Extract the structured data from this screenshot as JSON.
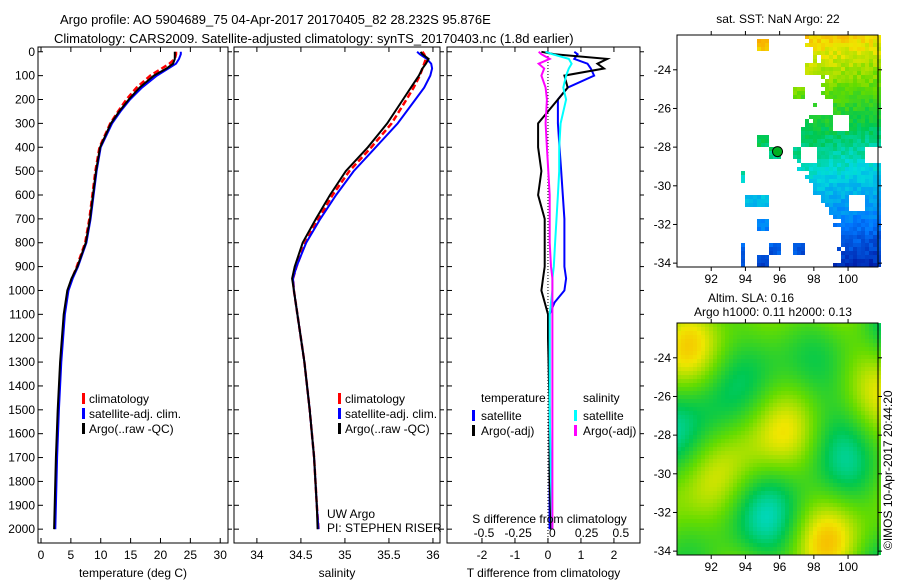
{
  "title_line1": "Argo profile: AO 5904689_75 04-Apr-2017 20170405_82 28.232S 95.876E",
  "title_line2": "Climatology: CARS2009. Satellite-adjusted climatology: synTS_20170403.nc (1.8d earlier)",
  "credit": "©IMOS 10-Apr-2017 20:44:20",
  "colors": {
    "climatology": "#ff0000",
    "satellite": "#0000ff",
    "argo": "#000000",
    "sal_satellite": "#00ffff",
    "sal_argo": "#ff00ff"
  },
  "chart_data": [
    {
      "id": "temperature",
      "type": "line",
      "xlabel": "temperature (deg C)",
      "xlim": [
        -0.5,
        31.3
      ],
      "ylim": [
        2058,
        -20
      ],
      "xticks": [
        0,
        5,
        10,
        15,
        20,
        25,
        30
      ],
      "xtick_labels": [
        "0",
        "5",
        "10",
        "15",
        "20",
        "25",
        "30"
      ],
      "yticks": [
        0,
        100,
        200,
        300,
        400,
        500,
        600,
        700,
        800,
        900,
        1000,
        1100,
        1200,
        1300,
        1400,
        1500,
        1600,
        1700,
        1800,
        1900,
        2000
      ],
      "ytick_labels": [
        "0",
        "100",
        "200",
        "300",
        "400",
        "500",
        "600",
        "700",
        "800",
        "900",
        "1000",
        "1100",
        "1200",
        "1300",
        "1400",
        "1500",
        "1600",
        "1700",
        "1800",
        "1900",
        "2000"
      ],
      "legend": [
        "climatology",
        "satellite-adj. clim.",
        "Argo(..raw -QC)"
      ],
      "depth": [
        0,
        10,
        30,
        50,
        70,
        100,
        150,
        200,
        250,
        300,
        400,
        500,
        600,
        700,
        800,
        900,
        950,
        1000,
        1100,
        1200,
        1300,
        1500,
        1700,
        1900,
        2000
      ],
      "series": [
        {
          "name": "climatology",
          "values": [
            22.6,
            22.6,
            22.4,
            21.5,
            20.2,
            18.3,
            16.0,
            14.3,
            12.9,
            11.6,
            9.8,
            9.1,
            8.6,
            8.1,
            7.4,
            6.0,
            5.2,
            4.5,
            3.9,
            3.6,
            3.3,
            2.9,
            2.6,
            2.4,
            2.3
          ]
        },
        {
          "name": "satellite-adj. clim.",
          "values": [
            23.4,
            23.4,
            23.1,
            22.6,
            21.3,
            19.4,
            16.9,
            14.9,
            13.3,
            11.9,
            10.0,
            9.3,
            8.8,
            8.3,
            7.6,
            6.2,
            5.3,
            4.6,
            4.0,
            3.7,
            3.4,
            3.0,
            2.7,
            2.5,
            2.4
          ]
        },
        {
          "name": "Argo(..raw -QC)",
          "values": [
            22.4,
            22.4,
            22.4,
            22.1,
            21.0,
            18.9,
            16.5,
            14.7,
            13.1,
            11.7,
            9.9,
            9.2,
            8.7,
            8.2,
            7.5,
            6.1,
            5.1,
            4.4,
            3.8,
            3.5,
            3.2,
            2.8,
            2.5,
            2.3,
            2.2
          ]
        }
      ]
    },
    {
      "id": "salinity",
      "type": "line",
      "xlabel": "salinity",
      "xlim": [
        33.74,
        36.08
      ],
      "ylim": [
        2058,
        -20
      ],
      "xticks": [
        34,
        34.5,
        35,
        35.5,
        36
      ],
      "xtick_labels": [
        "34",
        "34.5",
        "35",
        "35.5",
        "36"
      ],
      "legend": [
        "climatology",
        "satellite-adj. clim.",
        "Argo(..raw -QC)"
      ],
      "annotation": [
        "UW Argo",
        "PI: STEPHEN RISER"
      ],
      "depth": [
        0,
        10,
        30,
        50,
        70,
        100,
        150,
        200,
        300,
        400,
        500,
        600,
        700,
        800,
        900,
        950,
        1000,
        1100,
        1200,
        1300,
        1500,
        1700,
        1900,
        2000
      ],
      "series": [
        {
          "name": "climatology",
          "values": [
            35.88,
            35.9,
            35.92,
            35.9,
            35.88,
            35.85,
            35.78,
            35.7,
            35.53,
            35.3,
            35.05,
            34.86,
            34.7,
            34.55,
            34.45,
            34.41,
            34.42,
            34.46,
            34.5,
            34.54,
            34.6,
            34.65,
            34.68,
            34.7
          ]
        },
        {
          "name": "satellite-adj. clim.",
          "values": [
            35.82,
            35.85,
            35.93,
            35.98,
            35.99,
            35.97,
            35.9,
            35.8,
            35.6,
            35.35,
            35.1,
            34.9,
            34.72,
            34.56,
            34.45,
            34.41,
            34.42,
            34.46,
            34.5,
            34.54,
            34.6,
            34.65,
            34.68,
            34.7
          ]
        },
        {
          "name": "Argo(..raw -QC)",
          "values": [
            35.86,
            35.88,
            35.95,
            35.92,
            35.88,
            35.84,
            35.75,
            35.66,
            35.48,
            35.26,
            35.01,
            34.83,
            34.67,
            34.52,
            34.43,
            34.4,
            34.42,
            34.46,
            34.5,
            34.54,
            34.6,
            34.65,
            34.68,
            34.69
          ]
        }
      ]
    },
    {
      "id": "difference",
      "type": "line",
      "xlabel": "T difference from climatology",
      "x2label": "S difference from climatology",
      "xlim": [
        -3.06,
        2.79
      ],
      "x2lim": [
        -0.77,
        0.64
      ],
      "ylim": [
        2058,
        -20
      ],
      "xticks": [
        -2,
        -1,
        0,
        1,
        2
      ],
      "xtick_labels": [
        "-2",
        "-1",
        "0",
        "1",
        "2"
      ],
      "x2ticks": [
        -0.5,
        -0.25,
        0,
        0.25,
        0.5
      ],
      "x2tick_labels": [
        "-0.5",
        "-0.25",
        "0",
        "0.25",
        "0.5"
      ],
      "legend_temperature_title": "temperature",
      "legend_salinity_title": "salinity",
      "legend_temperature": [
        "satellite",
        "Argo(-adj)"
      ],
      "legend_salinity": [
        "satellite",
        "Argo(-adj)"
      ],
      "depth": [
        0,
        10,
        30,
        50,
        70,
        100,
        150,
        200,
        300,
        400,
        500,
        600,
        700,
        800,
        900,
        950,
        1000,
        1050,
        1100,
        1200,
        1500,
        1800,
        2000
      ],
      "series": [
        {
          "name": "temperature satellite",
          "axis": "T",
          "values": [
            0.8,
            0.9,
            0.8,
            1.2,
            1.3,
            1.4,
            0.6,
            0.3,
            0.3,
            0.35,
            0.4,
            0.45,
            0.5,
            0.5,
            0.5,
            0.55,
            0.5,
            0.2,
            0.05,
            0.05,
            0.05,
            0.05,
            0.05
          ]
        },
        {
          "name": "temperature Argo(-adj)",
          "axis": "T",
          "values": [
            -0.2,
            0.2,
            1.8,
            1.5,
            1.7,
            0.5,
            0.6,
            0.3,
            -0.3,
            -0.3,
            -0.2,
            -0.3,
            -0.1,
            -0.1,
            -0.1,
            -0.15,
            -0.2,
            -0.1,
            0.0,
            0.0,
            0.05,
            0.05,
            0.1
          ]
        },
        {
          "name": "salinity satellite",
          "axis": "S",
          "values": [
            -0.05,
            0.0,
            0.12,
            0.14,
            0.12,
            0.1,
            0.08,
            0.1,
            0.06,
            0.05,
            0.05,
            0.04,
            0.03,
            0.02,
            0.01,
            0.0,
            0.0,
            -0.01,
            -0.02,
            -0.02,
            -0.02,
            -0.01,
            0.0
          ]
        },
        {
          "name": "salinity Argo(-adj)",
          "axis": "S",
          "values": [
            -0.1,
            -0.08,
            -0.02,
            -0.1,
            -0.06,
            -0.08,
            -0.05,
            -0.04,
            -0.05,
            -0.04,
            -0.03,
            -0.02,
            -0.02,
            -0.02,
            -0.01,
            0.0,
            0.0,
            0.0,
            0.0,
            0.0,
            0.0,
            0.0,
            0.0
          ]
        }
      ]
    },
    {
      "id": "sst-map",
      "type": "heatmap",
      "title": "sat. SST: NaN Argo: 22",
      "xlim": [
        90.0,
        101.75
      ],
      "ylim": [
        -34.2,
        -22.2
      ],
      "xticks": [
        92,
        94,
        96,
        98,
        100
      ],
      "xtick_labels": [
        "92",
        "94",
        "96",
        "98",
        "100"
      ],
      "yticks": [
        -24,
        -26,
        -28,
        -30,
        -32,
        -34
      ],
      "ytick_labels": [
        "-24",
        "-26",
        "-28",
        "-30",
        "-32",
        "-34"
      ],
      "argo_position": {
        "lon": 95.876,
        "lat": -28.232
      }
    },
    {
      "id": "sla-map",
      "type": "heatmap",
      "title_line1": "Altim. SLA: 0.16",
      "title_line2": "Argo h1000: 0.11 h2000: 0.13",
      "xlim": [
        90.0,
        101.75
      ],
      "ylim": [
        -34.2,
        -22.2
      ],
      "xticks": [
        92,
        94,
        96,
        98,
        100
      ],
      "xtick_labels": [
        "92",
        "94",
        "96",
        "98",
        "100"
      ],
      "yticks": [
        -24,
        -26,
        -28,
        -30,
        -32,
        -34
      ],
      "ytick_labels": [
        "-24",
        "-26",
        "-28",
        "-30",
        "-32",
        "-34"
      ]
    }
  ]
}
